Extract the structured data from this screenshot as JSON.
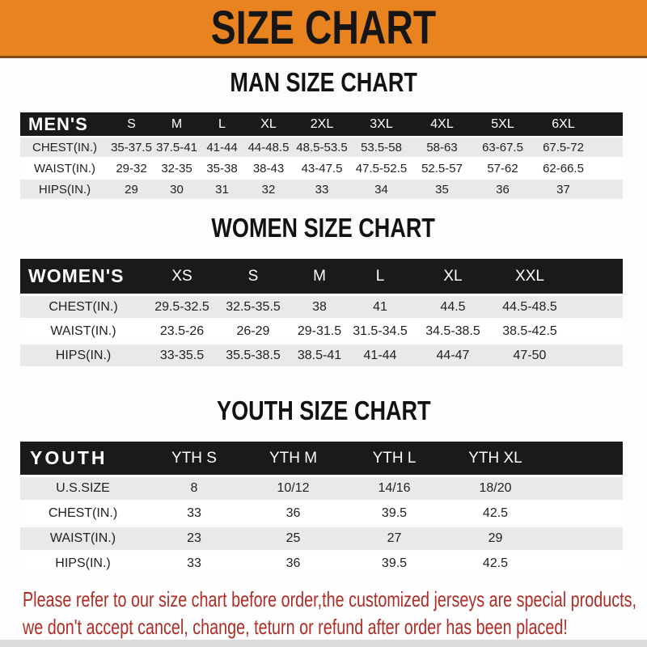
{
  "banner": {
    "title": "SIZE CHART"
  },
  "colors": {
    "banner_bg": "#E98320",
    "band_bg": "#1A1A1A",
    "alt_row_bg": "#E9E9E9",
    "footer_text": "#AE2E27"
  },
  "sections": [
    {
      "heading": "MAN SIZE CHART",
      "corner_label": "MEN'S",
      "columns": [
        "S",
        "M",
        "L",
        "XL",
        "2XL",
        "3XL",
        "4XL",
        "5XL",
        "6XL"
      ],
      "rows": [
        {
          "label": "CHEST(IN.)",
          "values": [
            "35-37.5",
            "37.5-41",
            "41-44",
            "44-48.5",
            "48.5-53.5",
            "53.5-58",
            "58-63",
            "63-67.5",
            "67.5-72"
          ]
        },
        {
          "label": "WAIST(IN.)",
          "values": [
            "29-32",
            "32-35",
            "35-38",
            "38-43",
            "43-47.5",
            "47.5-52.5",
            "52.5-57",
            "57-62",
            "62-66.5"
          ]
        },
        {
          "label": "HIPS(IN.)",
          "values": [
            "29",
            "30",
            "31",
            "32",
            "33",
            "34",
            "35",
            "36",
            "37"
          ]
        }
      ]
    },
    {
      "heading": "WOMEN SIZE CHART",
      "corner_label": "WOMEN'S",
      "columns": [
        "XS",
        "S",
        "M",
        "L",
        "XL",
        "XXL"
      ],
      "rows": [
        {
          "label": "CHEST(IN.)",
          "values": [
            "29.5-32.5",
            "32.5-35.5",
            "38",
            "41",
            "44.5",
            "44.5-48.5"
          ]
        },
        {
          "label": "WAIST(IN.)",
          "values": [
            "23.5-26",
            "26-29",
            "29-31.5",
            "31.5-34.5",
            "34.5-38.5",
            "38.5-42.5"
          ]
        },
        {
          "label": "HIPS(IN.)",
          "values": [
            "33-35.5",
            "35.5-38.5",
            "38.5-41",
            "41-44",
            "44-47",
            "47-50"
          ]
        }
      ]
    },
    {
      "heading": "YOUTH SIZE CHART",
      "corner_label": "YOUTH",
      "columns": [
        "YTH S",
        "YTH M",
        "YTH L",
        "YTH XL"
      ],
      "rows": [
        {
          "label": "U.S.SIZE",
          "values": [
            "8",
            "10/12",
            "14/16",
            "18/20"
          ]
        },
        {
          "label": "CHEST(IN.)",
          "values": [
            "33",
            "36",
            "39.5",
            "42.5"
          ]
        },
        {
          "label": "WAIST(IN.)",
          "values": [
            "23",
            "25",
            "27",
            "29"
          ]
        },
        {
          "label": "HIPS(IN.)",
          "values": [
            "33",
            "36",
            "39.5",
            "42.5"
          ]
        }
      ]
    }
  ],
  "footer": {
    "line1": "Please refer to our size chart before order,the customized jerseys are special products,",
    "line2": "we don't accept cancel, change, teturn or refund after order has been placed!"
  }
}
